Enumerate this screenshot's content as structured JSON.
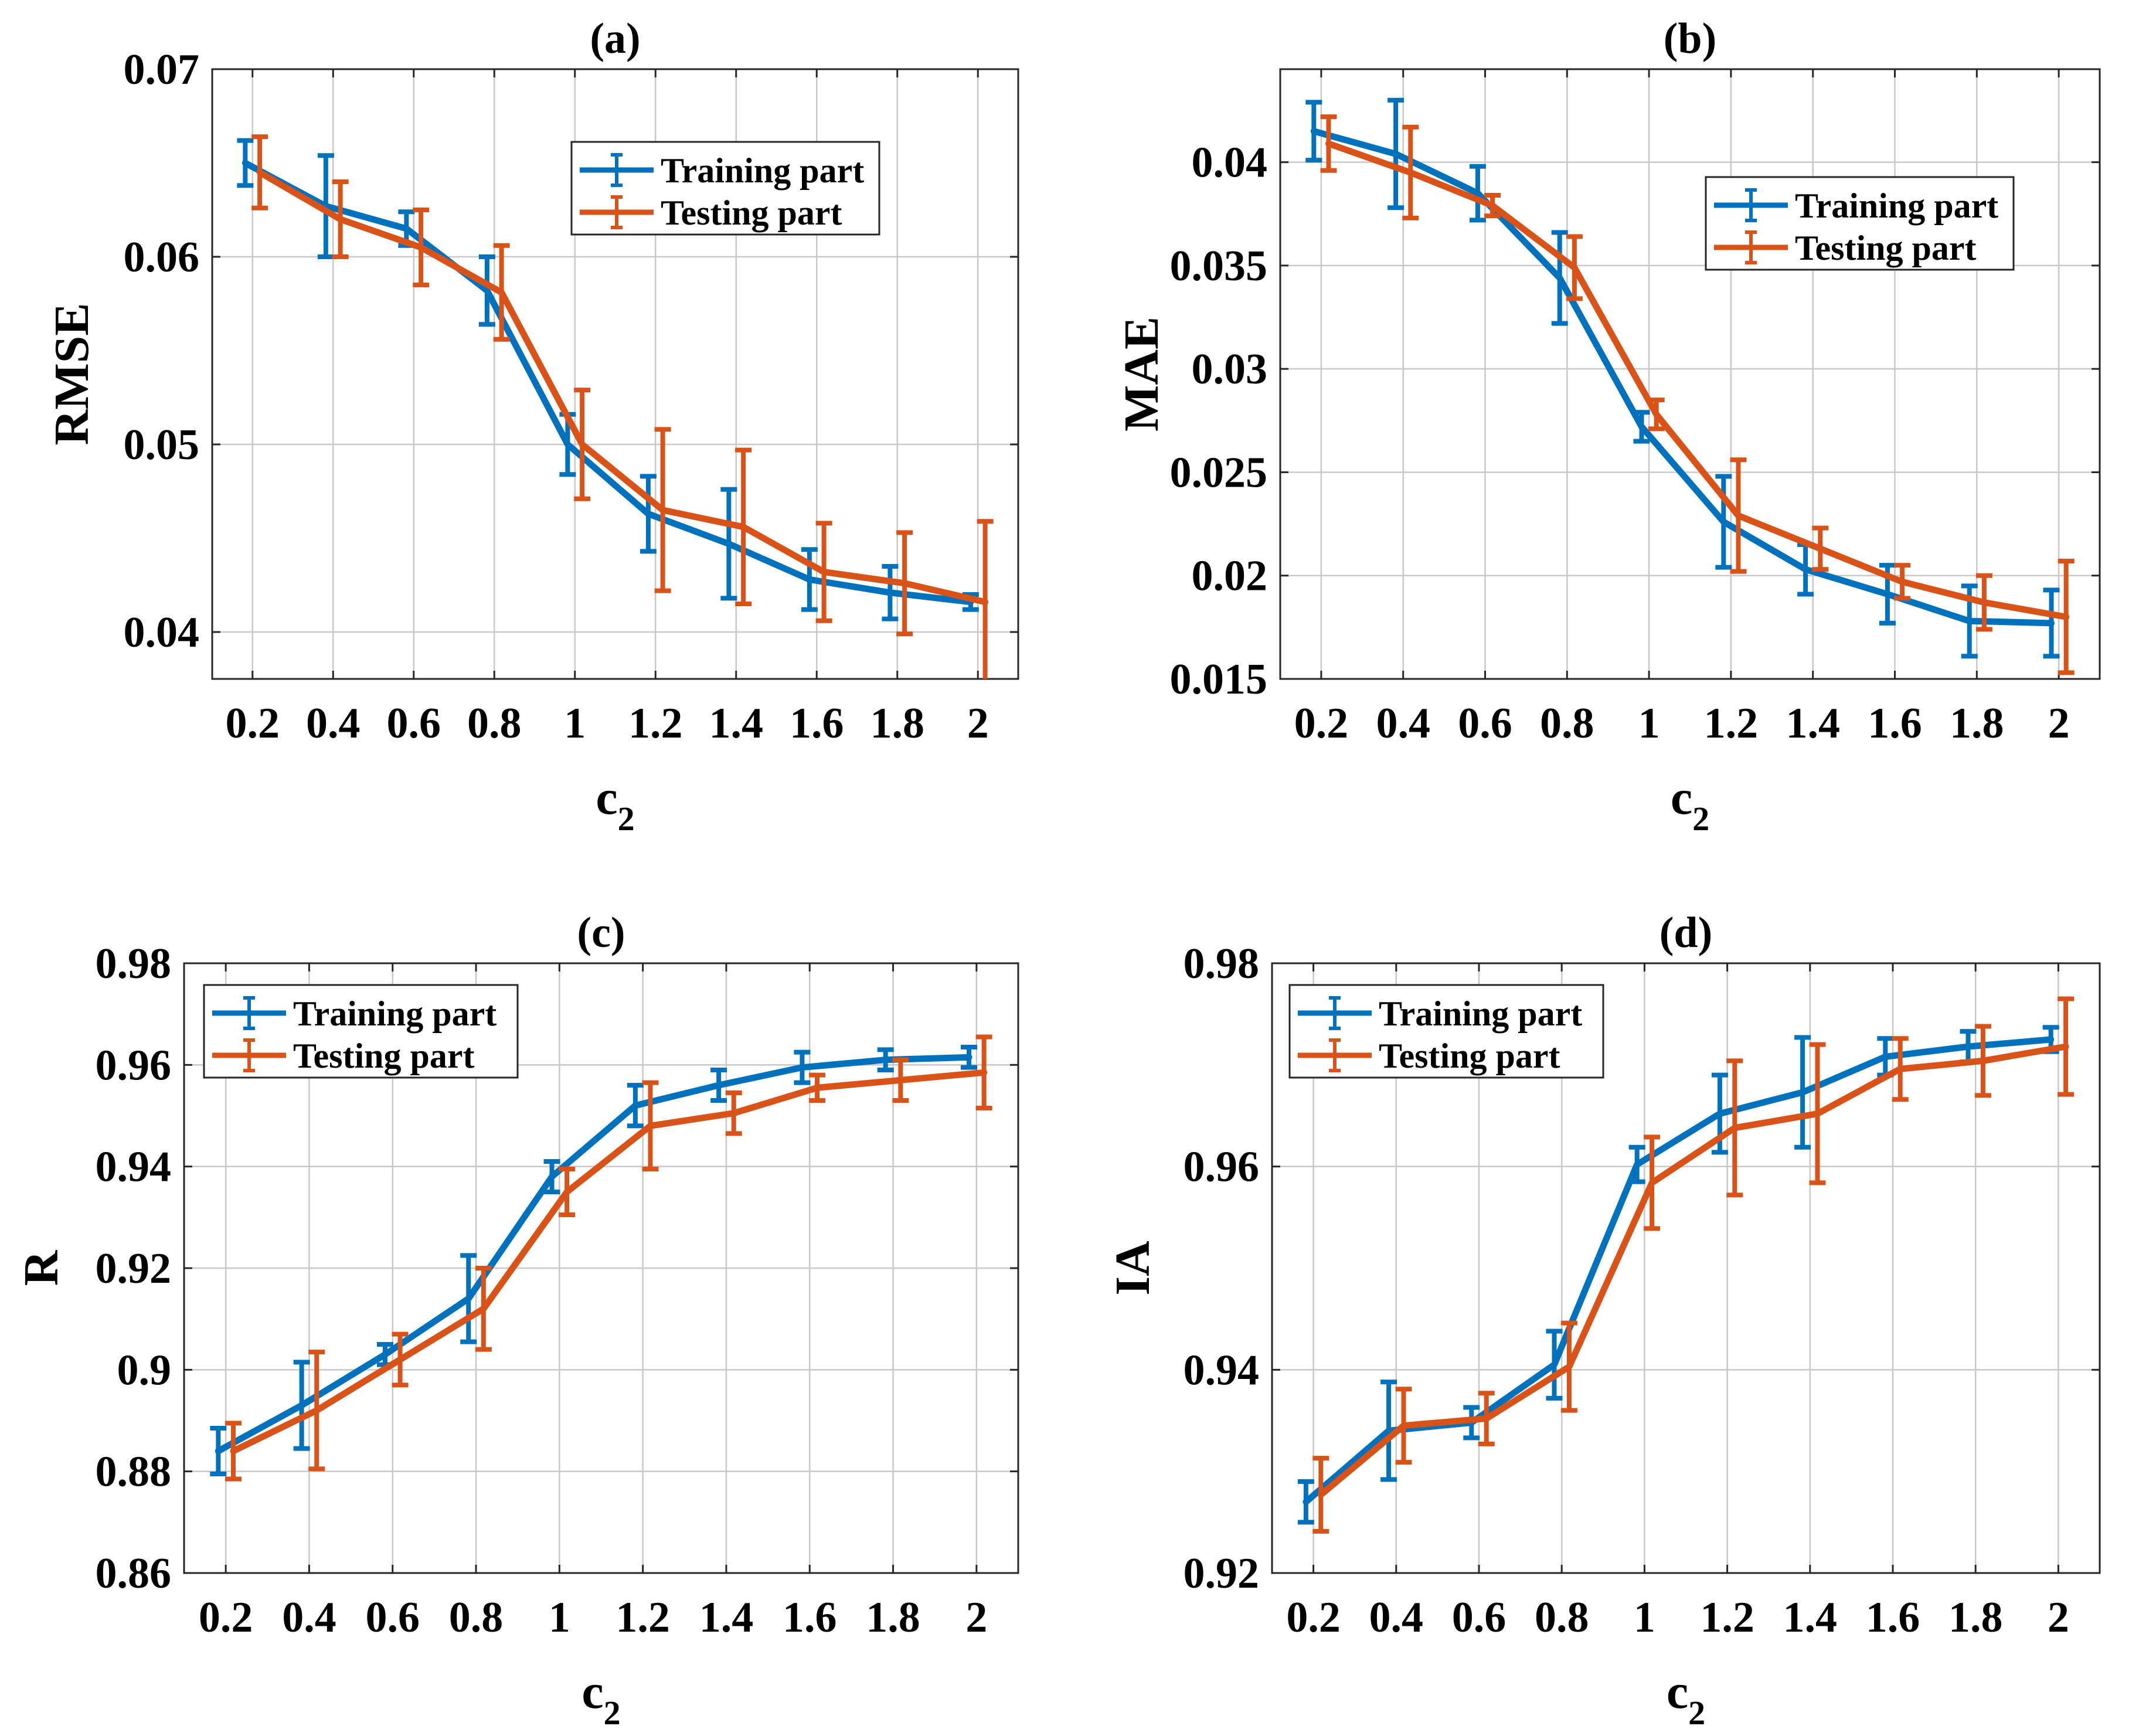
{
  "chart_data": [
    {
      "type": "line",
      "panel": "(a)",
      "title": "(a)",
      "xlabel": "c",
      "xlabel_sub": "2",
      "ylabel": "RMSE",
      "xlim": [
        0.1,
        2.1
      ],
      "ylim": [
        0.0375,
        0.07
      ],
      "xticks": [
        0.2,
        0.4,
        0.6,
        0.8,
        1.0,
        1.2,
        1.4,
        1.6,
        1.8,
        2.0
      ],
      "xtick_labels": [
        "0.2",
        "0.4",
        "0.6",
        "0.8",
        "1",
        "1.2",
        "1.4",
        "1.6",
        "1.8",
        "2"
      ],
      "yticks": [
        0.04,
        0.05,
        0.06,
        0.07
      ],
      "ytick_labels": [
        "0.04",
        "0.05",
        "0.06",
        "0.07"
      ],
      "grid": true,
      "legend_position": "top-right",
      "series": [
        {
          "name": "Training part",
          "color": "#0072BD",
          "values": [
            0.065,
            0.0627,
            0.0615,
            0.0582,
            0.05,
            0.0463,
            0.0447,
            0.0428,
            0.0421,
            0.0416
          ],
          "errors": [
            0.0012,
            0.0027,
            0.0009,
            0.0018,
            0.0016,
            0.002,
            0.0029,
            0.0016,
            0.0014,
            0.0004
          ]
        },
        {
          "name": "Testing part",
          "color": "#D95319",
          "values": [
            0.0645,
            0.062,
            0.0605,
            0.0581,
            0.05,
            0.0465,
            0.0456,
            0.0432,
            0.0426,
            0.0416
          ],
          "errors": [
            0.0019,
            0.002,
            0.002,
            0.0025,
            0.0029,
            0.0043,
            0.0041,
            0.0026,
            0.0027,
            0.0043
          ]
        }
      ]
    },
    {
      "type": "line",
      "panel": "(b)",
      "title": "(b)",
      "xlabel": "c",
      "xlabel_sub": "2",
      "ylabel": "MAE",
      "xlim": [
        0.1,
        2.1
      ],
      "ylim": [
        0.015,
        0.0445
      ],
      "xticks": [
        0.2,
        0.4,
        0.6,
        0.8,
        1.0,
        1.2,
        1.4,
        1.6,
        1.8,
        2.0
      ],
      "xtick_labels": [
        "0.2",
        "0.4",
        "0.6",
        "0.8",
        "1",
        "1.2",
        "1.4",
        "1.6",
        "1.8",
        "2"
      ],
      "yticks": [
        0.015,
        0.02,
        0.025,
        0.03,
        0.035,
        0.04
      ],
      "ytick_labels": [
        "0.015",
        "0.02",
        "0.025",
        "0.03",
        "0.035",
        "0.04"
      ],
      "grid": true,
      "legend_position": "top-right",
      "series": [
        {
          "name": "Training part",
          "color": "#0072BD",
          "values": [
            0.0415,
            0.0404,
            0.0385,
            0.0344,
            0.0272,
            0.0226,
            0.0203,
            0.0191,
            0.0178,
            0.0177
          ],
          "errors": [
            0.0014,
            0.0026,
            0.0013,
            0.0022,
            0.0007,
            0.0022,
            0.0012,
            0.0014,
            0.0017,
            0.0016
          ]
        },
        {
          "name": "Testing part",
          "color": "#D95319",
          "values": [
            0.0409,
            0.0395,
            0.0379,
            0.0349,
            0.0278,
            0.0229,
            0.0213,
            0.0197,
            0.0187,
            0.018
          ],
          "errors": [
            0.0013,
            0.0022,
            0.0005,
            0.0015,
            0.0007,
            0.0027,
            0.001,
            0.0008,
            0.0013,
            0.0027
          ]
        }
      ]
    },
    {
      "type": "line",
      "panel": "(c)",
      "title": "(c)",
      "xlabel": "c",
      "xlabel_sub": "2",
      "ylabel": "R",
      "xlim": [
        0.1,
        2.1
      ],
      "ylim": [
        0.86,
        0.98
      ],
      "xticks": [
        0.2,
        0.4,
        0.6,
        0.8,
        1.0,
        1.2,
        1.4,
        1.6,
        1.8,
        2.0
      ],
      "xtick_labels": [
        "0.2",
        "0.4",
        "0.6",
        "0.8",
        "1",
        "1.2",
        "1.4",
        "1.6",
        "1.8",
        "2"
      ],
      "yticks": [
        0.86,
        0.88,
        0.9,
        0.92,
        0.94,
        0.96,
        0.98
      ],
      "ytick_labels": [
        "0.86",
        "0.88",
        "0.9",
        "0.92",
        "0.94",
        "0.96",
        "0.98"
      ],
      "grid": true,
      "legend_position": "top-left",
      "series": [
        {
          "name": "Training part",
          "color": "#0072BD",
          "values": [
            0.884,
            0.893,
            0.903,
            0.914,
            0.938,
            0.952,
            0.956,
            0.9595,
            0.961,
            0.9615
          ],
          "errors": [
            0.0045,
            0.0085,
            0.002,
            0.0085,
            0.003,
            0.004,
            0.003,
            0.003,
            0.002,
            0.002
          ]
        },
        {
          "name": "Testing part",
          "color": "#D95319",
          "values": [
            0.884,
            0.892,
            0.902,
            0.912,
            0.935,
            0.948,
            0.9505,
            0.9555,
            0.957,
            0.9585
          ],
          "errors": [
            0.0055,
            0.0115,
            0.005,
            0.008,
            0.0045,
            0.0085,
            0.004,
            0.0025,
            0.004,
            0.007
          ]
        }
      ]
    },
    {
      "type": "line",
      "panel": "(d)",
      "title": "(d)",
      "xlabel": "c",
      "xlabel_sub": "2",
      "ylabel": "IA",
      "xlim": [
        0.1,
        2.1
      ],
      "ylim": [
        0.92,
        0.98
      ],
      "xticks": [
        0.2,
        0.4,
        0.6,
        0.8,
        1.0,
        1.2,
        1.4,
        1.6,
        1.8,
        2.0
      ],
      "xtick_labels": [
        "0.2",
        "0.4",
        "0.6",
        "0.8",
        "1",
        "1.2",
        "1.4",
        "1.6",
        "1.8",
        "2"
      ],
      "yticks": [
        0.92,
        0.94,
        0.96,
        0.98
      ],
      "ytick_labels": [
        "0.92",
        "0.94",
        "0.96",
        "0.98"
      ],
      "grid": true,
      "legend_position": "top-left",
      "series": [
        {
          "name": "Training part",
          "color": "#0072BD",
          "values": [
            0.927,
            0.934,
            0.9348,
            0.9405,
            0.9602,
            0.9652,
            0.9673,
            0.9708,
            0.9718,
            0.9725
          ],
          "errors": [
            0.002,
            0.0048,
            0.0015,
            0.0033,
            0.0017,
            0.0038,
            0.0054,
            0.0018,
            0.0015,
            0.0012
          ]
        },
        {
          "name": "Testing part",
          "color": "#D95319",
          "values": [
            0.9277,
            0.9345,
            0.9352,
            0.9403,
            0.9584,
            0.9638,
            0.9652,
            0.9696,
            0.9704,
            0.9718
          ],
          "errors": [
            0.0036,
            0.0036,
            0.0025,
            0.0043,
            0.0045,
            0.0066,
            0.0068,
            0.003,
            0.0034,
            0.0047
          ]
        }
      ]
    }
  ]
}
